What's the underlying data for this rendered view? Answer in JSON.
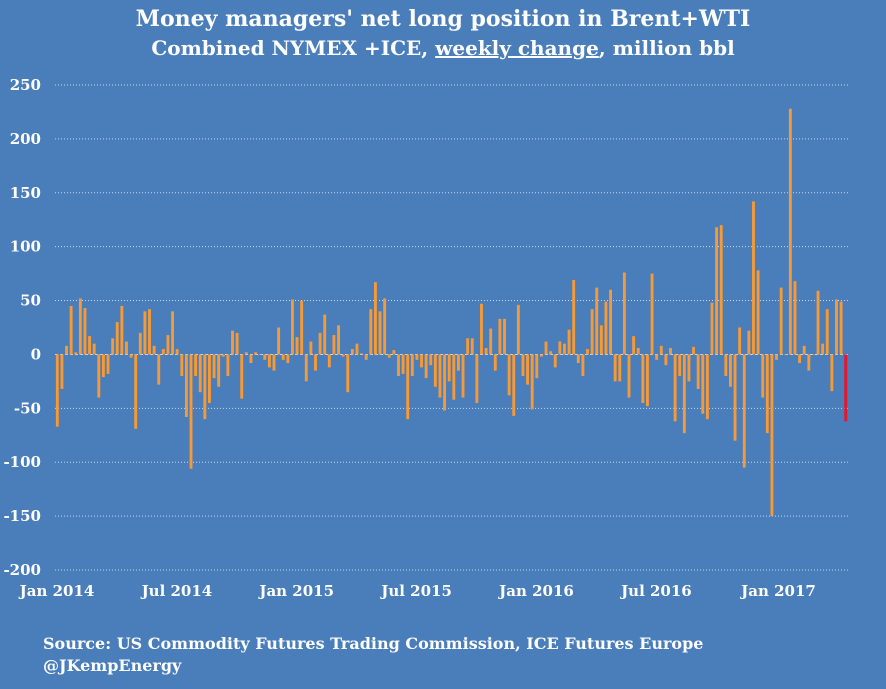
{
  "title": "Money managers' net long position in  Brent+WTI",
  "subtitle_parts": [
    "Combined NYMEX +ICE, ",
    "weekly change",
    ", million bbl"
  ],
  "source": "Source: US Commodity Futures Trading Commission, ICE Futures Europe",
  "handle": "@JKempEnergy",
  "colors": {
    "background": "#4a7ebb",
    "bar": "#f79a36",
    "last_bar": "#e8142a",
    "gridline": "#c8d8ee"
  },
  "chart_data": {
    "type": "bar",
    "title": "Money managers' net long position in  Brent+WTI",
    "subtitle": "Combined NYMEX +ICE, weekly change, million bbl",
    "xlabel": "",
    "ylabel": "",
    "ylim": [
      -200,
      250
    ],
    "yticks": [
      250,
      200,
      150,
      100,
      50,
      0,
      -50,
      -100,
      -150,
      -200
    ],
    "xtick_labels": [
      "Jan 2014",
      "Jul 2014",
      "Jan 2015",
      "Jul 2015",
      "Jan 2016",
      "Jul 2016",
      "Jan 2017"
    ],
    "grid": true,
    "legend": "none",
    "x_start": "2014-01-07",
    "x_interval": "weekly",
    "values": [
      -67,
      -32,
      8,
      45,
      2,
      52,
      43,
      17,
      10,
      -40,
      -21,
      -18,
      15,
      30,
      45,
      12,
      -3,
      -69,
      20,
      40,
      42,
      8,
      -28,
      5,
      18,
      40,
      5,
      -20,
      -58,
      -106,
      -20,
      -35,
      -60,
      -45,
      -22,
      -30,
      -2,
      -20,
      22,
      20,
      -41,
      2,
      -8,
      2,
      0,
      -5,
      -12,
      -15,
      25,
      -5,
      -8,
      51,
      16,
      50,
      -25,
      12,
      -15,
      20,
      37,
      -12,
      18,
      27,
      -2,
      -35,
      5,
      10,
      1,
      -5,
      42,
      67,
      40,
      52,
      -3,
      4,
      -20,
      -18,
      -60,
      -20,
      -5,
      -12,
      -22,
      -10,
      -30,
      -40,
      -52,
      -25,
      -42,
      -15,
      -40,
      15,
      15,
      -45,
      47,
      6,
      24,
      -15,
      33,
      33,
      -38,
      -57,
      46,
      -20,
      -28,
      -51,
      -22,
      -2,
      12,
      3,
      -12,
      12,
      10,
      23,
      69,
      -8,
      -20,
      5,
      42,
      62,
      27,
      49,
      60,
      -25,
      -25,
      76,
      -40,
      17,
      6,
      -45,
      -48,
      75,
      -5,
      8,
      -10,
      6,
      -62,
      -20,
      -73,
      -25,
      7,
      -32,
      -55,
      -60,
      48,
      118,
      120,
      -20,
      -30,
      -80,
      25,
      -105,
      22,
      142,
      78,
      -40,
      -73,
      -150,
      -5,
      62,
      0,
      228,
      68,
      -8,
      8,
      -15,
      0,
      59,
      10,
      42,
      -34,
      51,
      49,
      -62
    ]
  }
}
